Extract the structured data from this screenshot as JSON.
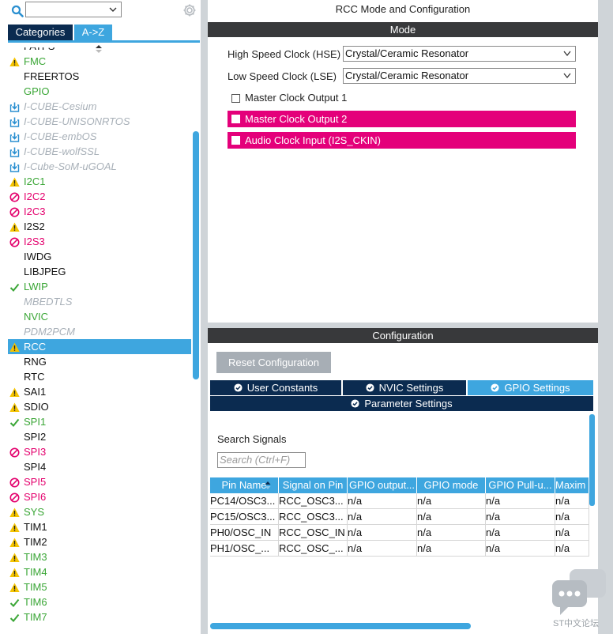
{
  "left": {
    "tabs": {
      "categories": "Categories",
      "az": "A->Z"
    },
    "items": [
      {
        "label": "FATFS",
        "icon": "none",
        "color": "black"
      },
      {
        "label": "FMC",
        "icon": "warn",
        "color": "green"
      },
      {
        "label": "FREERTOS",
        "icon": "none",
        "color": "black"
      },
      {
        "label": "GPIO",
        "icon": "none",
        "color": "green"
      },
      {
        "label": "I-CUBE-Cesium",
        "icon": "download",
        "color": "grey"
      },
      {
        "label": "I-CUBE-UNISONRTOS",
        "icon": "download",
        "color": "grey"
      },
      {
        "label": "I-CUBE-embOS",
        "icon": "download",
        "color": "grey"
      },
      {
        "label": "I-CUBE-wolfSSL",
        "icon": "download",
        "color": "grey"
      },
      {
        "label": "I-Cube-SoM-uGOAL",
        "icon": "download",
        "color": "grey"
      },
      {
        "label": "I2C1",
        "icon": "warn",
        "color": "green"
      },
      {
        "label": "I2C2",
        "icon": "block",
        "color": "pink"
      },
      {
        "label": "I2C3",
        "icon": "block",
        "color": "pink"
      },
      {
        "label": "I2S2",
        "icon": "warn",
        "color": "black"
      },
      {
        "label": "I2S3",
        "icon": "block",
        "color": "pink"
      },
      {
        "label": "IWDG",
        "icon": "none",
        "color": "black"
      },
      {
        "label": "LIBJPEG",
        "icon": "none",
        "color": "black"
      },
      {
        "label": "LWIP",
        "icon": "check",
        "color": "green"
      },
      {
        "label": "MBEDTLS",
        "icon": "none",
        "color": "grey"
      },
      {
        "label": "NVIC",
        "icon": "none",
        "color": "green"
      },
      {
        "label": "PDM2PCM",
        "icon": "none",
        "color": "grey"
      },
      {
        "label": "RCC",
        "icon": "warn",
        "color": "black",
        "selected": true
      },
      {
        "label": "RNG",
        "icon": "none",
        "color": "black"
      },
      {
        "label": "RTC",
        "icon": "none",
        "color": "black"
      },
      {
        "label": "SAI1",
        "icon": "warn",
        "color": "black"
      },
      {
        "label": "SDIO",
        "icon": "warn",
        "color": "black"
      },
      {
        "label": "SPI1",
        "icon": "check",
        "color": "green"
      },
      {
        "label": "SPI2",
        "icon": "none",
        "color": "black"
      },
      {
        "label": "SPI3",
        "icon": "block",
        "color": "pink"
      },
      {
        "label": "SPI4",
        "icon": "none",
        "color": "black"
      },
      {
        "label": "SPI5",
        "icon": "block",
        "color": "pink"
      },
      {
        "label": "SPI6",
        "icon": "block",
        "color": "pink"
      },
      {
        "label": "SYS",
        "icon": "warn",
        "color": "green"
      },
      {
        "label": "TIM1",
        "icon": "warn",
        "color": "black"
      },
      {
        "label": "TIM2",
        "icon": "warn",
        "color": "black"
      },
      {
        "label": "TIM3",
        "icon": "warn",
        "color": "green"
      },
      {
        "label": "TIM4",
        "icon": "warn",
        "color": "green"
      },
      {
        "label": "TIM5",
        "icon": "warn",
        "color": "green"
      },
      {
        "label": "TIM6",
        "icon": "check",
        "color": "green"
      },
      {
        "label": "TIM7",
        "icon": "check",
        "color": "green"
      }
    ]
  },
  "mode": {
    "title": "RCC Mode and Configuration",
    "header": "Mode",
    "hse_label": "High Speed Clock (HSE)",
    "hse_value": "Crystal/Ceramic Resonator",
    "lse_label": "Low Speed Clock (LSE)",
    "lse_value": "Crystal/Ceramic Resonator",
    "mco1": "Master Clock Output 1",
    "mco2": "Master Clock Output 2",
    "i2s_ckin": "Audio Clock Input (I2S_CKIN)"
  },
  "config": {
    "header": "Configuration",
    "reset": "Reset Configuration",
    "tabs": [
      "User Constants",
      "NVIC Settings",
      "GPIO Settings",
      "Parameter Settings"
    ],
    "search_label": "Search Signals",
    "search_placeholder": "Search (Ctrl+F)",
    "columns": [
      "Pin Name",
      "Signal on Pin",
      "GPIO output...",
      "GPIO mode",
      "GPIO Pull-u...",
      "Maxim"
    ],
    "rows": [
      [
        "PC14/OSC3...",
        "RCC_OSC3...",
        "n/a",
        "n/a",
        "n/a",
        "n/a"
      ],
      [
        "PC15/OSC3...",
        "RCC_OSC3...",
        "n/a",
        "n/a",
        "n/a",
        "n/a"
      ],
      [
        "PH0/OSC_IN",
        "RCC_OSC_IN",
        "n/a",
        "n/a",
        "n/a",
        "n/a"
      ],
      [
        "PH1/OSC_...",
        "RCC_OSC_...",
        "n/a",
        "n/a",
        "n/a",
        "n/a"
      ]
    ]
  },
  "watermark": "ST中文论坛",
  "colors": {
    "accent": "#3ea6df",
    "navy": "#0b2b50",
    "pink": "#e4007a",
    "green": "#3aa636",
    "warn": "#f5c400"
  }
}
